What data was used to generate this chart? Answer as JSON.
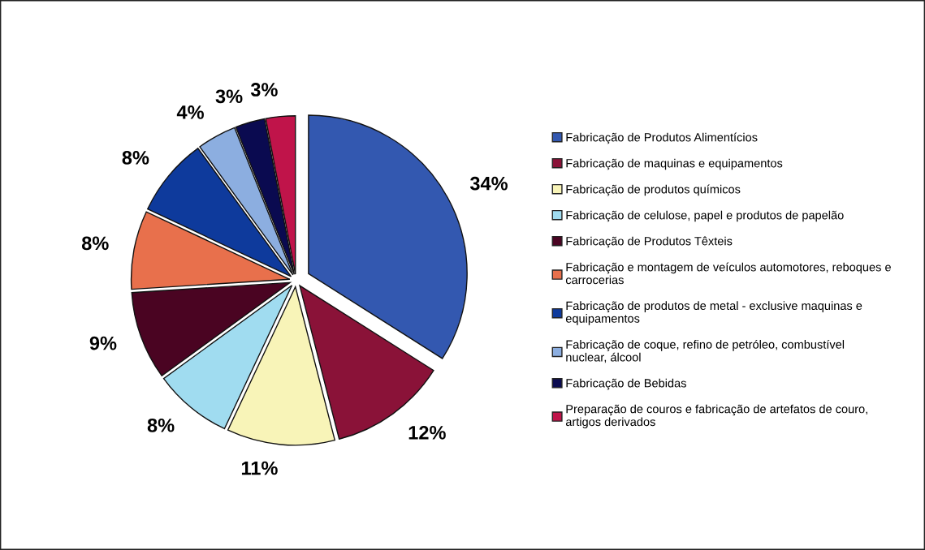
{
  "chart_data": {
    "type": "pie",
    "categories": [
      "Fabricação de Produtos Alimentícios",
      "Fabricação de maquinas e equipamentos",
      "Fabricação de produtos químicos",
      "Fabricação de celulose, papel e produtos de papelão",
      "Fabricação de Produtos Têxteis",
      "Fabricação e montagem de veículos automotores, reboques e carrocerias",
      "Fabricação de produtos de metal - exclusive maquinas e equipamentos",
      "Fabricação de coque, refino de petróleo, combustível nuclear, álcool",
      "Fabricação de Bebidas",
      "Preparação de couros e fabricação de artefatos de couro, artigos derivados"
    ],
    "values": [
      34,
      12,
      11,
      8,
      9,
      8,
      8,
      4,
      3,
      3
    ],
    "value_labels": [
      "34%",
      "12%",
      "11%",
      "8%",
      "9%",
      "8%",
      "8%",
      "4%",
      "3%",
      "3%"
    ],
    "colors": [
      "#3358b0",
      "#8a1238",
      "#f8f4b8",
      "#a0dcf0",
      "#4a0422",
      "#e8704c",
      "#0e3a9c",
      "#8caee0",
      "#0a0a50",
      "#c0144a"
    ],
    "legend": "right"
  }
}
